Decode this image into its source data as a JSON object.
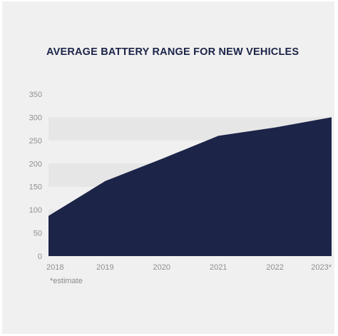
{
  "colors": {
    "card_background": "#f0f0f0",
    "band": "#e6e6e6",
    "area_fill": "#1c2448",
    "title_text": "#1c2448",
    "tick_text": "#8f8f8f"
  },
  "chart_data": {
    "type": "area",
    "title": "AVERAGE BATTERY RANGE FOR NEW VEHICLES",
    "xlabel": "",
    "ylabel": "",
    "categories": [
      "2018",
      "2019",
      "2020",
      "2021",
      "2022",
      "2023*"
    ],
    "x": [
      2018,
      2019,
      2020,
      2021,
      2022,
      2023
    ],
    "values": [
      87,
      162,
      210,
      260,
      278,
      300
    ],
    "ylim": [
      0,
      350
    ],
    "yticks": [
      0,
      50,
      100,
      150,
      200,
      250,
      300,
      350
    ],
    "grid": "alternating horizontal bands",
    "legend": "none",
    "footnote": "*estimate"
  }
}
